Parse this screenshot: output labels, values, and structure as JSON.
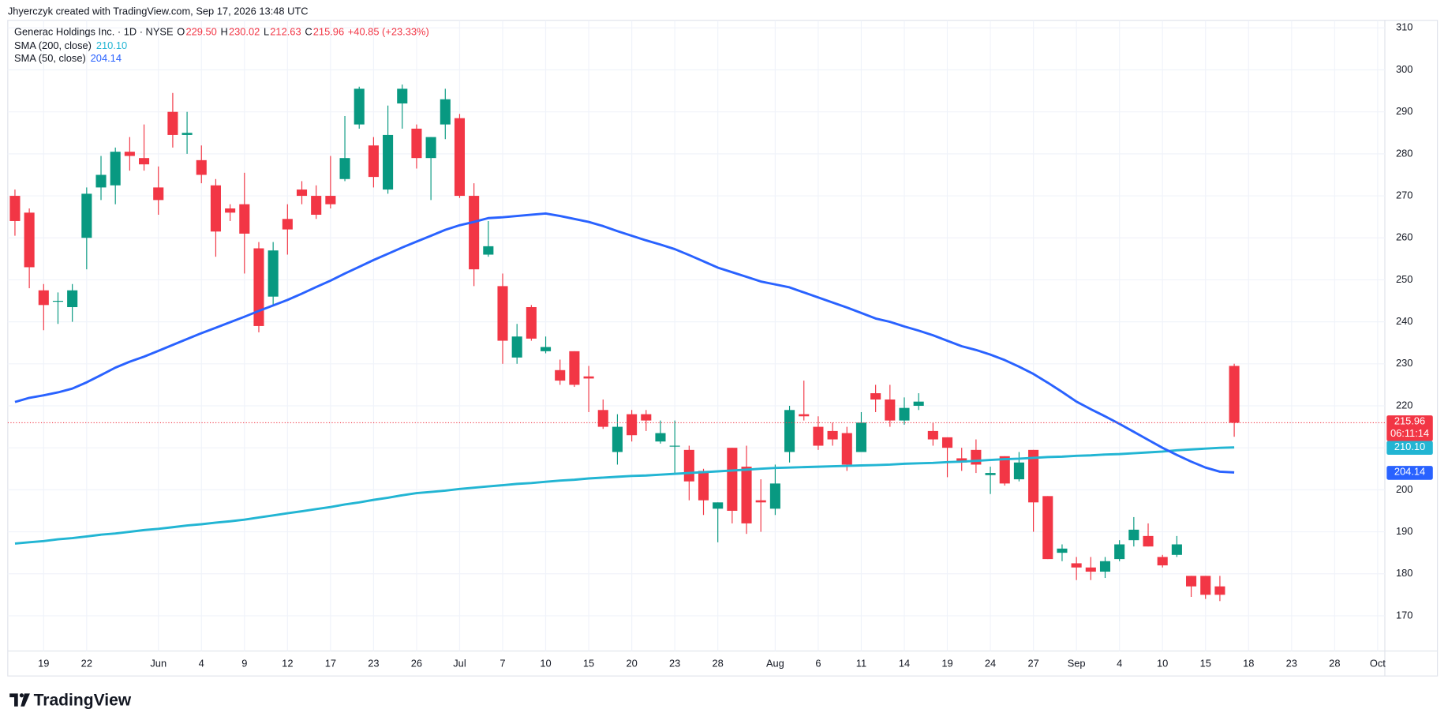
{
  "watermark": "Jhyerczyk created with TradingView.com, Sep 17, 2026 13:48 UTC",
  "brand": "TradingView",
  "chart_data": {
    "type": "candlestick",
    "title": "Generac Holdings Inc. · 1D · NYSE",
    "ohlc": [
      {
        "key": "O",
        "text": "229.50"
      },
      {
        "key": "H",
        "text": "230.02"
      },
      {
        "key": "L",
        "text": "212.63"
      },
      {
        "key": "C",
        "text": "215.96"
      }
    ],
    "change": "+40.85 (+23.33%)",
    "countdown": "06:11:14",
    "up_color": "#089981",
    "down_color": "#f23645",
    "grid": true,
    "ylim": [
      161.6,
      311.8
    ],
    "yticks": [
      170,
      180,
      190,
      200,
      210,
      220,
      230,
      240,
      250,
      260,
      270,
      280,
      290,
      300,
      310
    ],
    "categories": [
      null,
      null,
      "19",
      null,
      null,
      "22",
      null,
      null,
      null,
      null,
      "Jun",
      null,
      null,
      "4",
      null,
      null,
      "9",
      null,
      null,
      "12",
      null,
      null,
      "17",
      null,
      null,
      "23",
      null,
      null,
      "26",
      null,
      null,
      "Jul",
      null,
      null,
      "7",
      null,
      null,
      "10",
      null,
      null,
      "15",
      null,
      null,
      "20",
      null,
      null,
      "23",
      null,
      null,
      "28",
      null,
      null,
      null,
      "Aug",
      null,
      null,
      "6",
      null,
      null,
      "11",
      null,
      null,
      "14",
      null,
      null,
      "19",
      null,
      null,
      "24",
      null,
      null,
      "27",
      null,
      null,
      "Sep",
      null,
      null,
      "4",
      null,
      null,
      "10",
      null,
      null,
      "15",
      null,
      null,
      "18",
      null,
      null,
      "23",
      null,
      null,
      "28",
      null,
      null,
      "Oct"
    ],
    "open": [
      270,
      266,
      247.5,
      245,
      243.5,
      260,
      272,
      272.5,
      280.5,
      279,
      272,
      290,
      284.5,
      278.5,
      272.5,
      267,
      268,
      257.5,
      246,
      264.5,
      271.5,
      270,
      270,
      274,
      287,
      282,
      271.5,
      292,
      286,
      279,
      287,
      288.5,
      270,
      256,
      248.5,
      231.5,
      243.5,
      233,
      228.5,
      233,
      227,
      219,
      209,
      218,
      218,
      211.5,
      210.5,
      209.5,
      204.5,
      195.5,
      210,
      205.5,
      197.5,
      195.5,
      209,
      218,
      215,
      214,
      213.5,
      209,
      223,
      221.5,
      216.5,
      220,
      214,
      212.5,
      207.5,
      209.5,
      203.5,
      208,
      202.5,
      209.5,
      198.5,
      185,
      182.5,
      181.5,
      180.5,
      183.5,
      188,
      189,
      184,
      184.5,
      179.5,
      179.5,
      177,
      229.5,
      null,
      null,
      null,
      null,
      null,
      null,
      null,
      null,
      null,
      null
    ],
    "high": [
      271.5,
      267,
      249,
      247,
      249,
      272,
      279.5,
      281.5,
      284,
      287,
      277,
      294.5,
      290,
      282,
      274,
      268,
      275.5,
      259,
      259,
      268,
      273.5,
      272.5,
      279.5,
      289,
      296,
      284,
      291.5,
      296.5,
      287,
      284,
      295.5,
      289.5,
      273,
      264,
      251.5,
      239.5,
      244,
      236.5,
      231,
      233,
      229.5,
      221.5,
      218,
      219,
      219,
      216.5,
      216.5,
      210.5,
      205,
      197,
      210,
      210.5,
      202.5,
      206,
      220,
      226,
      217.5,
      216,
      215,
      218.5,
      225,
      225,
      222,
      223,
      216,
      212.5,
      210,
      212,
      205.5,
      208,
      209,
      209.5,
      198.5,
      187,
      184,
      184,
      184,
      188,
      193.5,
      192,
      184.5,
      189,
      179.5,
      179.5,
      179.5,
      230.02,
      null,
      null,
      null,
      null,
      null,
      null,
      null,
      null,
      null,
      null
    ],
    "low": [
      260.5,
      248,
      238,
      239.5,
      240,
      252.5,
      269,
      268,
      276,
      276,
      265.5,
      281.5,
      280,
      273,
      255.5,
      264,
      251.5,
      237.5,
      244,
      256,
      268,
      264.5,
      267,
      273.5,
      286,
      272,
      270.5,
      286,
      276.5,
      269,
      283.5,
      269.5,
      248.5,
      255.5,
      230,
      230,
      235.5,
      232.5,
      225,
      224.5,
      218.5,
      214.5,
      206,
      211.5,
      214,
      211,
      204,
      197.5,
      194,
      187.5,
      192,
      189.5,
      190,
      194,
      206.5,
      216.5,
      209.5,
      210.5,
      204.5,
      209,
      218.5,
      215,
      215.5,
      219,
      210.5,
      203,
      204.5,
      204,
      199,
      201,
      202,
      190,
      183.5,
      183,
      178.5,
      178.5,
      179,
      183,
      186.5,
      186.5,
      181.5,
      184,
      174.5,
      174,
      173.5,
      212.63,
      null,
      null,
      null,
      null,
      null,
      null,
      null,
      null,
      null,
      null
    ],
    "close": [
      264,
      253,
      244,
      245,
      247.5,
      270.5,
      275,
      280.5,
      279.5,
      277.5,
      269,
      284.5,
      285,
      275,
      261.5,
      266,
      261,
      239,
      257,
      262,
      270,
      265.5,
      268,
      279,
      295.5,
      274.5,
      284.5,
      295.5,
      279,
      284,
      293,
      270,
      252.5,
      258,
      235.5,
      236.5,
      236,
      234,
      226,
      225,
      226.5,
      215,
      215,
      213,
      216.5,
      213.5,
      210.5,
      202,
      197.5,
      197,
      195,
      192,
      197,
      201.5,
      219,
      217.5,
      210.5,
      212,
      206,
      216,
      221.5,
      216.5,
      219.5,
      221,
      212,
      210,
      206.5,
      206,
      204,
      201.5,
      206.5,
      197,
      183.5,
      186,
      181.5,
      180.5,
      183,
      187,
      190.5,
      186.5,
      182,
      187,
      177,
      175,
      175,
      215.96,
      null,
      null,
      null,
      null,
      null,
      null,
      null,
      null,
      null,
      null
    ],
    "series": [
      {
        "name": "SMA (200, close)",
        "value_label": "210.10",
        "color": "#22b5d3",
        "values": [
          187.2,
          187.5,
          187.8,
          188.2,
          188.5,
          188.9,
          189.3,
          189.6,
          190.0,
          190.4,
          190.7,
          191.1,
          191.5,
          191.8,
          192.2,
          192.5,
          192.9,
          193.4,
          193.9,
          194.4,
          194.9,
          195.4,
          195.9,
          196.5,
          197.0,
          197.6,
          198.1,
          198.7,
          199.2,
          199.5,
          199.8,
          200.2,
          200.5,
          200.8,
          201.1,
          201.4,
          201.6,
          201.9,
          202.2,
          202.4,
          202.7,
          202.9,
          203.1,
          203.3,
          203.4,
          203.6,
          203.8,
          204.0,
          204.2,
          204.4,
          204.6,
          204.8,
          205.0,
          205.2,
          205.3,
          205.4,
          205.5,
          205.6,
          205.7,
          205.8,
          205.9,
          206.0,
          206.2,
          206.3,
          206.4,
          206.6,
          206.7,
          206.9,
          207.1,
          207.3,
          207.4,
          207.6,
          207.8,
          207.9,
          208.1,
          208.2,
          208.4,
          208.5,
          208.7,
          208.9,
          209.1,
          209.4,
          209.6,
          209.8,
          210.0,
          210.1,
          null,
          null,
          null,
          null,
          null,
          null,
          null,
          null,
          null,
          null
        ]
      },
      {
        "name": "SMA (50, close)",
        "value_label": "204.14",
        "color": "#2962ff",
        "values": [
          220.9,
          221.9,
          222.5,
          223.2,
          224.1,
          225.6,
          227.3,
          229.1,
          230.5,
          231.7,
          233.1,
          234.5,
          235.9,
          237.3,
          238.6,
          239.9,
          241.2,
          242.6,
          243.9,
          245.2,
          246.7,
          248.3,
          249.8,
          251.5,
          253.1,
          254.7,
          256.2,
          257.7,
          259.1,
          260.5,
          261.9,
          263.0,
          263.8,
          264.7,
          264.9,
          265.2,
          265.5,
          265.8,
          265.2,
          264.5,
          263.8,
          262.8,
          261.6,
          260.5,
          259.4,
          258.4,
          257.3,
          255.9,
          254.4,
          252.9,
          251.8,
          250.7,
          249.6,
          248.9,
          248.2,
          247.0,
          245.8,
          244.6,
          243.4,
          242.1,
          240.8,
          240.0,
          238.9,
          237.9,
          236.8,
          235.5,
          234.2,
          233.3,
          232.2,
          230.9,
          229.3,
          227.6,
          225.5,
          223.3,
          221.0,
          219.2,
          217.5,
          215.7,
          213.8,
          211.9,
          210.0,
          208.3,
          206.7,
          205.3,
          204.3,
          204.14,
          null,
          null,
          null,
          null,
          null,
          null,
          null,
          null,
          null,
          null
        ]
      }
    ]
  }
}
